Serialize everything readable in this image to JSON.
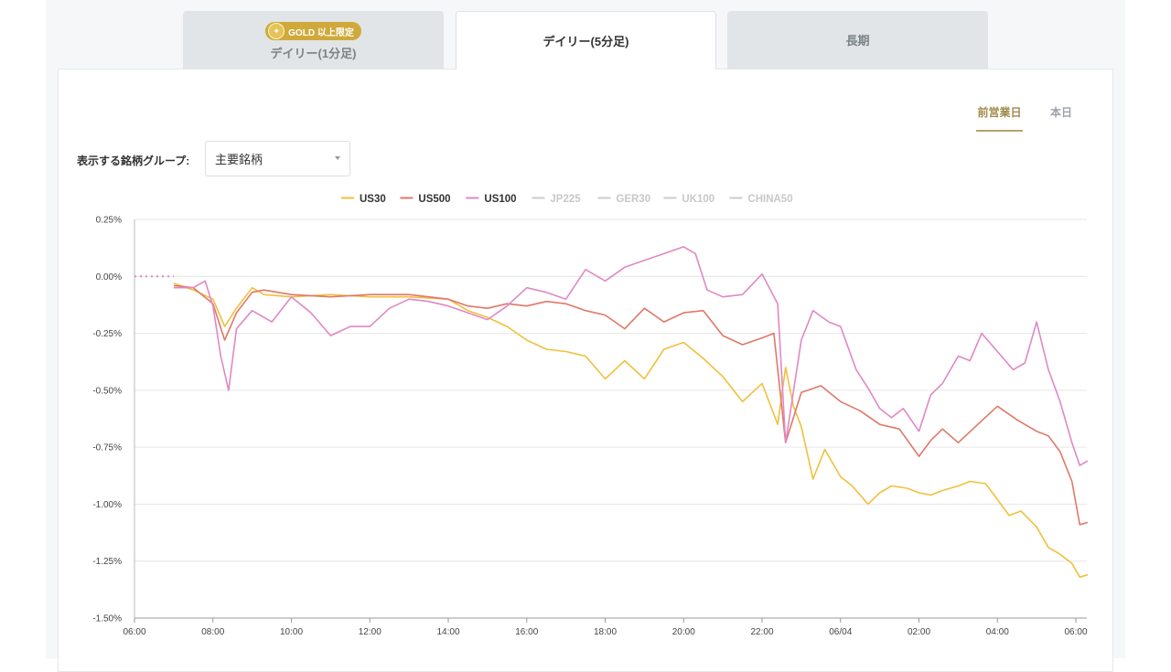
{
  "tabs": [
    {
      "label": "デイリー(1分足)",
      "badge": "GOLD 以上限定",
      "active": false
    },
    {
      "label": "デイリー(5分足)",
      "active": true
    },
    {
      "label": "長期",
      "active": false
    }
  ],
  "period_tabs": [
    {
      "label": "前営業日",
      "active": true
    },
    {
      "label": "本日",
      "active": false
    }
  ],
  "group_selector": {
    "label": "表示する銘柄グループ:",
    "value": "主要銘柄"
  },
  "colors": {
    "US30": "#f0c03c",
    "US500": "#e07868",
    "US100": "#e088c4",
    "disabled": "#cccccc",
    "gold": "#cfa93a",
    "active_period": "#a08a4a"
  },
  "chart_data": {
    "type": "line",
    "ylim": [
      -1.5,
      0.25
    ],
    "y_ticks": [
      "0.25%",
      "0.00%",
      "-0.25%",
      "-0.50%",
      "-0.75%",
      "-1.00%",
      "-1.25%",
      "-1.50%"
    ],
    "x_ticks": [
      "06:00",
      "08:00",
      "10:00",
      "12:00",
      "14:00",
      "16:00",
      "18:00",
      "20:00",
      "22:00",
      "06/04",
      "02:00",
      "04:00",
      "06:00"
    ],
    "x_units": "hours from 06:00",
    "legend_position": "top",
    "legend": [
      {
        "name": "US30",
        "enabled": true
      },
      {
        "name": "US500",
        "enabled": true
      },
      {
        "name": "US100",
        "enabled": true
      },
      {
        "name": "JP225",
        "enabled": false
      },
      {
        "name": "GER30",
        "enabled": false
      },
      {
        "name": "UK100",
        "enabled": false
      },
      {
        "name": "CHINA50",
        "enabled": false
      }
    ],
    "prev_close_marker": {
      "x": [
        0,
        1
      ],
      "y": 0
    },
    "series": [
      {
        "name": "US30",
        "points": [
          [
            1,
            -0.03
          ],
          [
            1.5,
            -0.06
          ],
          [
            2,
            -0.1
          ],
          [
            2.3,
            -0.22
          ],
          [
            2.6,
            -0.14
          ],
          [
            3,
            -0.05
          ],
          [
            3.3,
            -0.08
          ],
          [
            4,
            -0.09
          ],
          [
            5,
            -0.08
          ],
          [
            6,
            -0.09
          ],
          [
            7,
            -0.09
          ],
          [
            8,
            -0.1
          ],
          [
            8.5,
            -0.15
          ],
          [
            9,
            -0.18
          ],
          [
            9.5,
            -0.22
          ],
          [
            10,
            -0.28
          ],
          [
            10.5,
            -0.32
          ],
          [
            11,
            -0.33
          ],
          [
            11.5,
            -0.35
          ],
          [
            12,
            -0.45
          ],
          [
            12.5,
            -0.37
          ],
          [
            13,
            -0.45
          ],
          [
            13.5,
            -0.32
          ],
          [
            14,
            -0.29
          ],
          [
            14.5,
            -0.36
          ],
          [
            15,
            -0.44
          ],
          [
            15.5,
            -0.55
          ],
          [
            16,
            -0.47
          ],
          [
            16.4,
            -0.65
          ],
          [
            16.6,
            -0.4
          ],
          [
            16.8,
            -0.57
          ],
          [
            17,
            -0.66
          ],
          [
            17.3,
            -0.89
          ],
          [
            17.6,
            -0.76
          ],
          [
            18,
            -0.88
          ],
          [
            18.3,
            -0.92
          ],
          [
            18.7,
            -1.0
          ],
          [
            19,
            -0.95
          ],
          [
            19.3,
            -0.92
          ],
          [
            19.7,
            -0.93
          ],
          [
            20,
            -0.95
          ],
          [
            20.3,
            -0.96
          ],
          [
            20.6,
            -0.94
          ],
          [
            21,
            -0.92
          ],
          [
            21.3,
            -0.9
          ],
          [
            21.7,
            -0.91
          ],
          [
            22,
            -0.98
          ],
          [
            22.3,
            -1.05
          ],
          [
            22.6,
            -1.03
          ],
          [
            23,
            -1.1
          ],
          [
            23.3,
            -1.19
          ],
          [
            23.6,
            -1.22
          ],
          [
            23.9,
            -1.26
          ],
          [
            24.1,
            -1.32
          ],
          [
            24.3,
            -1.31
          ]
        ]
      },
      {
        "name": "US500",
        "points": [
          [
            1,
            -0.04
          ],
          [
            1.5,
            -0.05
          ],
          [
            2,
            -0.12
          ],
          [
            2.3,
            -0.28
          ],
          [
            2.6,
            -0.16
          ],
          [
            3,
            -0.07
          ],
          [
            3.3,
            -0.06
          ],
          [
            4,
            -0.08
          ],
          [
            5,
            -0.09
          ],
          [
            6,
            -0.08
          ],
          [
            7,
            -0.08
          ],
          [
            8,
            -0.1
          ],
          [
            8.5,
            -0.13
          ],
          [
            9,
            -0.14
          ],
          [
            9.5,
            -0.12
          ],
          [
            10,
            -0.13
          ],
          [
            10.5,
            -0.11
          ],
          [
            11,
            -0.12
          ],
          [
            11.5,
            -0.15
          ],
          [
            12,
            -0.17
          ],
          [
            12.5,
            -0.23
          ],
          [
            13,
            -0.14
          ],
          [
            13.5,
            -0.2
          ],
          [
            14,
            -0.16
          ],
          [
            14.5,
            -0.15
          ],
          [
            15,
            -0.26
          ],
          [
            15.5,
            -0.3
          ],
          [
            16,
            -0.27
          ],
          [
            16.3,
            -0.25
          ],
          [
            16.6,
            -0.73
          ],
          [
            17,
            -0.51
          ],
          [
            17.5,
            -0.48
          ],
          [
            18,
            -0.55
          ],
          [
            18.5,
            -0.59
          ],
          [
            19,
            -0.65
          ],
          [
            19.5,
            -0.67
          ],
          [
            20,
            -0.79
          ],
          [
            20.3,
            -0.72
          ],
          [
            20.6,
            -0.67
          ],
          [
            21,
            -0.73
          ],
          [
            21.5,
            -0.65
          ],
          [
            22,
            -0.57
          ],
          [
            22.5,
            -0.63
          ],
          [
            23,
            -0.68
          ],
          [
            23.3,
            -0.7
          ],
          [
            23.6,
            -0.77
          ],
          [
            23.9,
            -0.9
          ],
          [
            24.1,
            -1.09
          ],
          [
            24.3,
            -1.08
          ]
        ]
      },
      {
        "name": "US100",
        "points": [
          [
            1,
            -0.05
          ],
          [
            1.5,
            -0.05
          ],
          [
            1.8,
            -0.02
          ],
          [
            2,
            -0.13
          ],
          [
            2.2,
            -0.35
          ],
          [
            2.4,
            -0.5
          ],
          [
            2.6,
            -0.23
          ],
          [
            3,
            -0.15
          ],
          [
            3.5,
            -0.2
          ],
          [
            4,
            -0.09
          ],
          [
            4.5,
            -0.16
          ],
          [
            5,
            -0.26
          ],
          [
            5.5,
            -0.22
          ],
          [
            6,
            -0.22
          ],
          [
            6.5,
            -0.14
          ],
          [
            7,
            -0.1
          ],
          [
            7.5,
            -0.11
          ],
          [
            8,
            -0.13
          ],
          [
            8.5,
            -0.16
          ],
          [
            9,
            -0.19
          ],
          [
            9.5,
            -0.13
          ],
          [
            10,
            -0.05
          ],
          [
            10.5,
            -0.07
          ],
          [
            11,
            -0.1
          ],
          [
            11.5,
            0.03
          ],
          [
            12,
            -0.02
          ],
          [
            12.5,
            0.04
          ],
          [
            13,
            0.07
          ],
          [
            13.5,
            0.1
          ],
          [
            14,
            0.13
          ],
          [
            14.3,
            0.1
          ],
          [
            14.6,
            -0.06
          ],
          [
            15,
            -0.09
          ],
          [
            15.5,
            -0.08
          ],
          [
            16,
            0.01
          ],
          [
            16.4,
            -0.12
          ],
          [
            16.6,
            -0.73
          ],
          [
            17,
            -0.28
          ],
          [
            17.3,
            -0.15
          ],
          [
            17.7,
            -0.2
          ],
          [
            18,
            -0.22
          ],
          [
            18.4,
            -0.41
          ],
          [
            18.7,
            -0.49
          ],
          [
            19,
            -0.58
          ],
          [
            19.3,
            -0.62
          ],
          [
            19.6,
            -0.58
          ],
          [
            20,
            -0.68
          ],
          [
            20.3,
            -0.52
          ],
          [
            20.6,
            -0.47
          ],
          [
            21,
            -0.35
          ],
          [
            21.3,
            -0.37
          ],
          [
            21.6,
            -0.25
          ],
          [
            22,
            -0.33
          ],
          [
            22.4,
            -0.41
          ],
          [
            22.7,
            -0.38
          ],
          [
            23,
            -0.2
          ],
          [
            23.3,
            -0.41
          ],
          [
            23.6,
            -0.55
          ],
          [
            23.9,
            -0.73
          ],
          [
            24.1,
            -0.83
          ],
          [
            24.3,
            -0.81
          ]
        ]
      }
    ]
  }
}
